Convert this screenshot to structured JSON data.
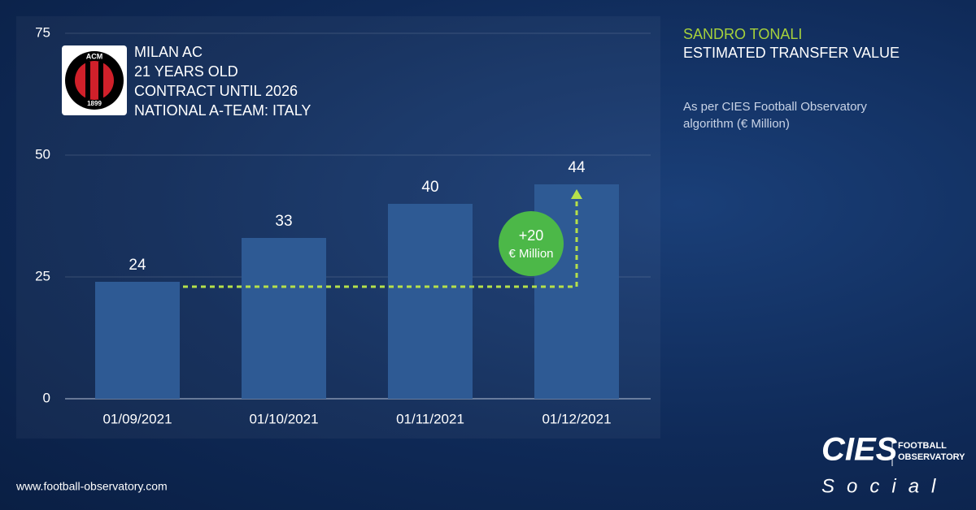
{
  "chart_data": {
    "type": "bar",
    "player": "SANDRO TONALI",
    "title": "ESTIMATED TRANSFER VALUE",
    "subtitle": "As per CIES Football Observatory algorithm (€ Million)",
    "categories": [
      "01/09/2021",
      "01/10/2021",
      "01/11/2021",
      "01/12/2021"
    ],
    "values": [
      24,
      33,
      40,
      44
    ],
    "color": "#2e5a94",
    "ylim": [
      0,
      75
    ],
    "yticks": [
      0,
      25,
      50,
      75
    ],
    "grid": true,
    "annotation": [
      "+20",
      "€ Million"
    ]
  },
  "info": [
    "MILAN AC",
    "21 YEARS OLD",
    "CONTRACT UNTIL 2026",
    "NATIONAL A-TEAM: ITALY"
  ],
  "club_logo": {
    "top": "ACM",
    "bottom": "1899"
  },
  "footer": {
    "url": "www.football-observatory.com",
    "brand": "CIES",
    "brand_sub": [
      "FOOTBALL",
      "OBSERVATORY"
    ],
    "tagline": "Social"
  }
}
